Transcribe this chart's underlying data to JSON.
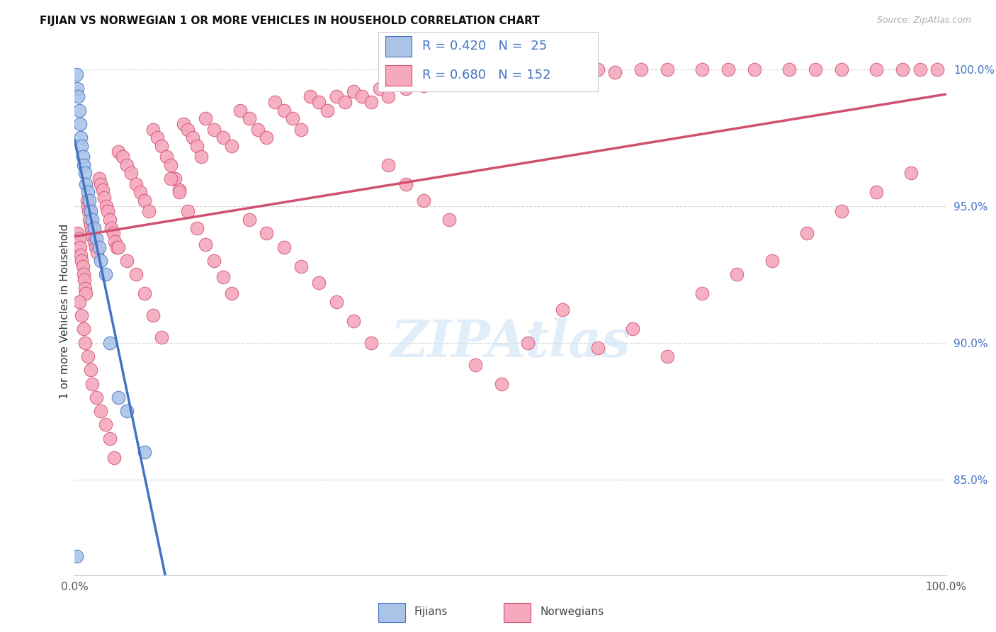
{
  "title": "FIJIAN VS NORWEGIAN 1 OR MORE VEHICLES IN HOUSEHOLD CORRELATION CHART",
  "source": "Source: ZipAtlas.com",
  "ylabel": "1 or more Vehicles in Household",
  "fijian_color": "#aac4e8",
  "norwegian_color": "#f5a8be",
  "fijian_line_color": "#4472c4",
  "norwegian_line_color": "#d05070",
  "legend_text_color": "#4472c4",
  "right_axis_color": "#4472c4",
  "R_fijian": 0.42,
  "N_fijian": 25,
  "R_norwegian": 0.68,
  "N_norwegian": 152,
  "right_yticks": [
    100.0,
    95.0,
    90.0,
    85.0
  ],
  "grid_color": "#cccccc",
  "xlim": [
    0.0,
    1.0
  ],
  "ylim": [
    0.815,
    1.008
  ],
  "fijian_x": [
    0.002,
    0.003,
    0.004,
    0.005,
    0.006,
    0.007,
    0.008,
    0.009,
    0.01,
    0.012,
    0.013,
    0.015,
    0.017,
    0.018,
    0.02,
    0.022,
    0.025,
    0.028,
    0.03,
    0.035,
    0.04,
    0.05,
    0.06,
    0.08,
    0.002
  ],
  "fijian_y": [
    0.998,
    0.993,
    0.99,
    0.985,
    0.98,
    0.975,
    0.972,
    0.968,
    0.965,
    0.962,
    0.958,
    0.955,
    0.952,
    0.948,
    0.945,
    0.942,
    0.938,
    0.935,
    0.93,
    0.925,
    0.9,
    0.88,
    0.875,
    0.86,
    0.822
  ],
  "norwegian_x": [
    0.003,
    0.005,
    0.006,
    0.007,
    0.008,
    0.009,
    0.01,
    0.011,
    0.012,
    0.013,
    0.014,
    0.015,
    0.016,
    0.017,
    0.018,
    0.019,
    0.02,
    0.022,
    0.024,
    0.026,
    0.028,
    0.03,
    0.032,
    0.034,
    0.036,
    0.038,
    0.04,
    0.042,
    0.044,
    0.046,
    0.048,
    0.05,
    0.055,
    0.06,
    0.065,
    0.07,
    0.075,
    0.08,
    0.085,
    0.09,
    0.095,
    0.1,
    0.105,
    0.11,
    0.115,
    0.12,
    0.125,
    0.13,
    0.135,
    0.14,
    0.145,
    0.15,
    0.16,
    0.17,
    0.18,
    0.19,
    0.2,
    0.21,
    0.22,
    0.23,
    0.24,
    0.25,
    0.26,
    0.27,
    0.28,
    0.29,
    0.3,
    0.31,
    0.32,
    0.33,
    0.34,
    0.35,
    0.36,
    0.37,
    0.38,
    0.39,
    0.4,
    0.42,
    0.44,
    0.46,
    0.48,
    0.5,
    0.52,
    0.54,
    0.56,
    0.58,
    0.6,
    0.62,
    0.65,
    0.68,
    0.72,
    0.75,
    0.78,
    0.82,
    0.85,
    0.88,
    0.92,
    0.95,
    0.97,
    0.99,
    0.005,
    0.008,
    0.01,
    0.012,
    0.015,
    0.018,
    0.02,
    0.025,
    0.03,
    0.035,
    0.04,
    0.045,
    0.05,
    0.06,
    0.07,
    0.08,
    0.09,
    0.1,
    0.11,
    0.12,
    0.13,
    0.14,
    0.15,
    0.16,
    0.17,
    0.18,
    0.2,
    0.22,
    0.24,
    0.26,
    0.28,
    0.3,
    0.32,
    0.34,
    0.36,
    0.38,
    0.4,
    0.43,
    0.46,
    0.49,
    0.52,
    0.56,
    0.6,
    0.64,
    0.68,
    0.72,
    0.76,
    0.8,
    0.84,
    0.88,
    0.92,
    0.96
  ],
  "norwegian_y": [
    0.94,
    0.938,
    0.935,
    0.932,
    0.93,
    0.928,
    0.925,
    0.923,
    0.92,
    0.918,
    0.952,
    0.95,
    0.948,
    0.945,
    0.943,
    0.941,
    0.939,
    0.937,
    0.935,
    0.933,
    0.96,
    0.958,
    0.956,
    0.953,
    0.95,
    0.948,
    0.945,
    0.942,
    0.94,
    0.937,
    0.935,
    0.97,
    0.968,
    0.965,
    0.962,
    0.958,
    0.955,
    0.952,
    0.948,
    0.978,
    0.975,
    0.972,
    0.968,
    0.965,
    0.96,
    0.956,
    0.98,
    0.978,
    0.975,
    0.972,
    0.968,
    0.982,
    0.978,
    0.975,
    0.972,
    0.985,
    0.982,
    0.978,
    0.975,
    0.988,
    0.985,
    0.982,
    0.978,
    0.99,
    0.988,
    0.985,
    0.99,
    0.988,
    0.992,
    0.99,
    0.988,
    0.993,
    0.99,
    0.995,
    0.993,
    0.996,
    0.994,
    0.998,
    0.996,
    0.998,
    0.997,
    0.999,
    0.998,
    0.999,
    1.0,
    0.999,
    1.0,
    0.999,
    1.0,
    1.0,
    1.0,
    1.0,
    1.0,
    1.0,
    1.0,
    1.0,
    1.0,
    1.0,
    1.0,
    1.0,
    0.915,
    0.91,
    0.905,
    0.9,
    0.895,
    0.89,
    0.885,
    0.88,
    0.875,
    0.87,
    0.865,
    0.858,
    0.935,
    0.93,
    0.925,
    0.918,
    0.91,
    0.902,
    0.96,
    0.955,
    0.948,
    0.942,
    0.936,
    0.93,
    0.924,
    0.918,
    0.945,
    0.94,
    0.935,
    0.928,
    0.922,
    0.915,
    0.908,
    0.9,
    0.965,
    0.958,
    0.952,
    0.945,
    0.892,
    0.885,
    0.9,
    0.912,
    0.898,
    0.905,
    0.895,
    0.918,
    0.925,
    0.93,
    0.94,
    0.948,
    0.955,
    0.962
  ]
}
